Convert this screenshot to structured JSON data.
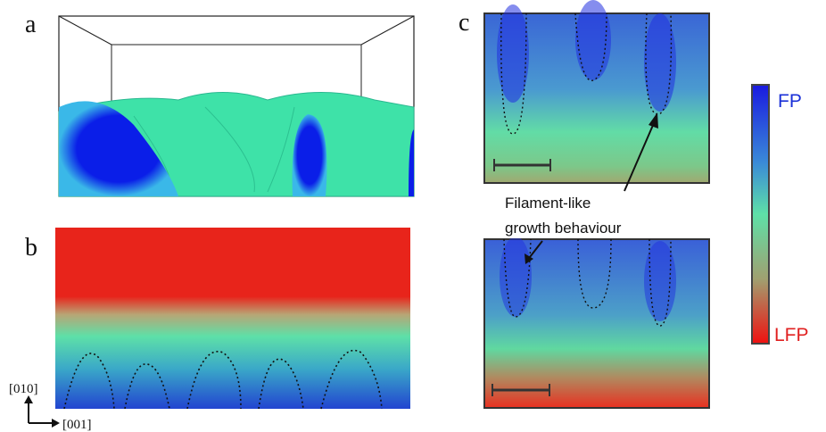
{
  "panels": {
    "a": {
      "label": "a"
    },
    "b": {
      "label": "b"
    },
    "c": {
      "label": "c",
      "annotation": [
        "Filament-like",
        "growth behaviour"
      ]
    }
  },
  "colorbar": {
    "top": "FP",
    "bottom": "LFP"
  },
  "axes": {
    "vertical": "[010]",
    "horizontal": "[001]"
  }
}
